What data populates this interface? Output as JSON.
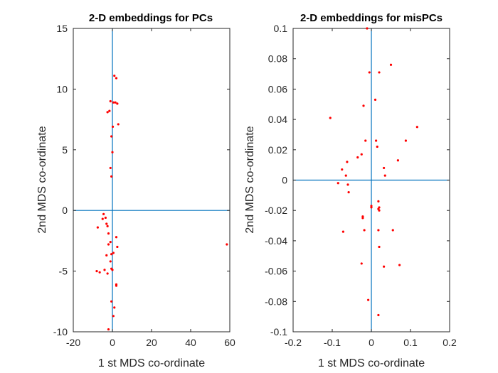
{
  "chart_data": [
    {
      "type": "scatter",
      "title": "2-D embeddings for PCs",
      "xlabel": "1 st MDS co-ordinate",
      "ylabel": "2nd MDS co-ordinate",
      "xlim": [
        -20,
        60
      ],
      "ylim": [
        -10,
        15
      ],
      "xticks": [
        -20,
        0,
        20,
        40,
        60
      ],
      "xtick_labels": [
        "-20",
        "0",
        "20",
        "40",
        "60"
      ],
      "yticks": [
        -10,
        -5,
        0,
        5,
        10,
        15
      ],
      "ytick_labels": [
        "-10",
        "-5",
        "0",
        "5",
        "10",
        "15"
      ],
      "grid": false,
      "reference_lines": {
        "x": 0,
        "y": 0,
        "color": "#0072BD"
      },
      "marker_color": "#ff0000",
      "series": [
        {
          "x": [
            1.0,
            2.0,
            -1.0,
            0.5,
            1.5,
            2.5,
            -1.5,
            -2.5,
            0.2,
            3.0,
            -0.5,
            0.0,
            -1.0,
            -0.5,
            -4.5,
            -7.5,
            -3.5,
            -5.0,
            -3.0,
            -2.5,
            -2.0,
            2.0,
            -1.0,
            2.5,
            -2.0,
            -0.5,
            0.5,
            -1.0,
            -3.0,
            -0.5,
            -4.0,
            -8.0,
            -6.5,
            0.0,
            -2.5,
            2.0,
            2.0,
            -0.5,
            1.0,
            0.5,
            -2.0,
            58.5
          ],
          "y": [
            11.1,
            10.9,
            9.0,
            8.9,
            8.9,
            8.8,
            8.2,
            8.1,
            6.9,
            7.1,
            6.1,
            4.8,
            3.5,
            2.8,
            -0.3,
            -1.4,
            -0.6,
            -0.7,
            -1.1,
            -1.3,
            -1.9,
            -2.2,
            -2.6,
            -3.0,
            -2.8,
            -3.6,
            -3.5,
            -4.2,
            -3.7,
            -4.8,
            -4.9,
            -5.0,
            -5.1,
            -4.9,
            -5.2,
            -6.1,
            -6.2,
            -7.5,
            -8.0,
            -8.7,
            -9.8,
            -2.8
          ]
        }
      ]
    },
    {
      "type": "scatter",
      "title": "2-D embeddings for misPCs",
      "xlabel": "1 st MDS co-ordinate",
      "ylabel": "2nd MDS co-ordinate",
      "xlim": [
        -0.2,
        0.2
      ],
      "ylim": [
        -0.1,
        0.1
      ],
      "xticks": [
        -0.2,
        -0.1,
        0,
        0.1,
        0.2
      ],
      "xtick_labels": [
        "-0.2",
        "-0.1",
        "0",
        "0.1",
        "0.2"
      ],
      "yticks": [
        -0.1,
        -0.08,
        -0.06,
        -0.04,
        -0.02,
        0,
        0.02,
        0.04,
        0.06,
        0.08,
        0.1
      ],
      "ytick_labels": [
        "-0.1",
        "-0.08",
        "-0.06",
        "-0.04",
        "-0.02",
        "0",
        "0.02",
        "0.04",
        "0.06",
        "0.08",
        "0.1"
      ],
      "grid": false,
      "reference_lines": {
        "x": 0,
        "y": 0,
        "color": "#0072BD"
      },
      "marker_color": "#ff0000",
      "series": [
        {
          "x": [
            -0.011,
            0.05,
            -0.005,
            0.02,
            0.01,
            -0.105,
            -0.02,
            0.117,
            -0.015,
            0.012,
            0.088,
            -0.035,
            0.015,
            0.068,
            -0.025,
            -0.062,
            0.032,
            -0.075,
            -0.065,
            0.035,
            -0.085,
            -0.06,
            0.0,
            -0.058,
            0.018,
            0.02,
            0.018,
            0.02,
            -0.022,
            0.0,
            -0.022,
            0.055,
            -0.072,
            -0.018,
            0.018,
            0.02,
            -0.025,
            0.072,
            0.032,
            -0.008,
            0.018
          ],
          "y": [
            0.1,
            0.076,
            0.071,
            0.071,
            0.053,
            0.041,
            0.049,
            0.035,
            0.026,
            0.026,
            0.026,
            0.015,
            0.022,
            0.013,
            0.017,
            0.012,
            0.008,
            0.007,
            0.003,
            0.003,
            -0.002,
            -0.003,
            -0.017,
            -0.008,
            -0.014,
            -0.018,
            -0.019,
            -0.02,
            -0.025,
            -0.018,
            -0.024,
            -0.033,
            -0.034,
            -0.033,
            -0.033,
            -0.044,
            -0.055,
            -0.056,
            -0.057,
            -0.079,
            -0.089
          ]
        }
      ]
    }
  ]
}
